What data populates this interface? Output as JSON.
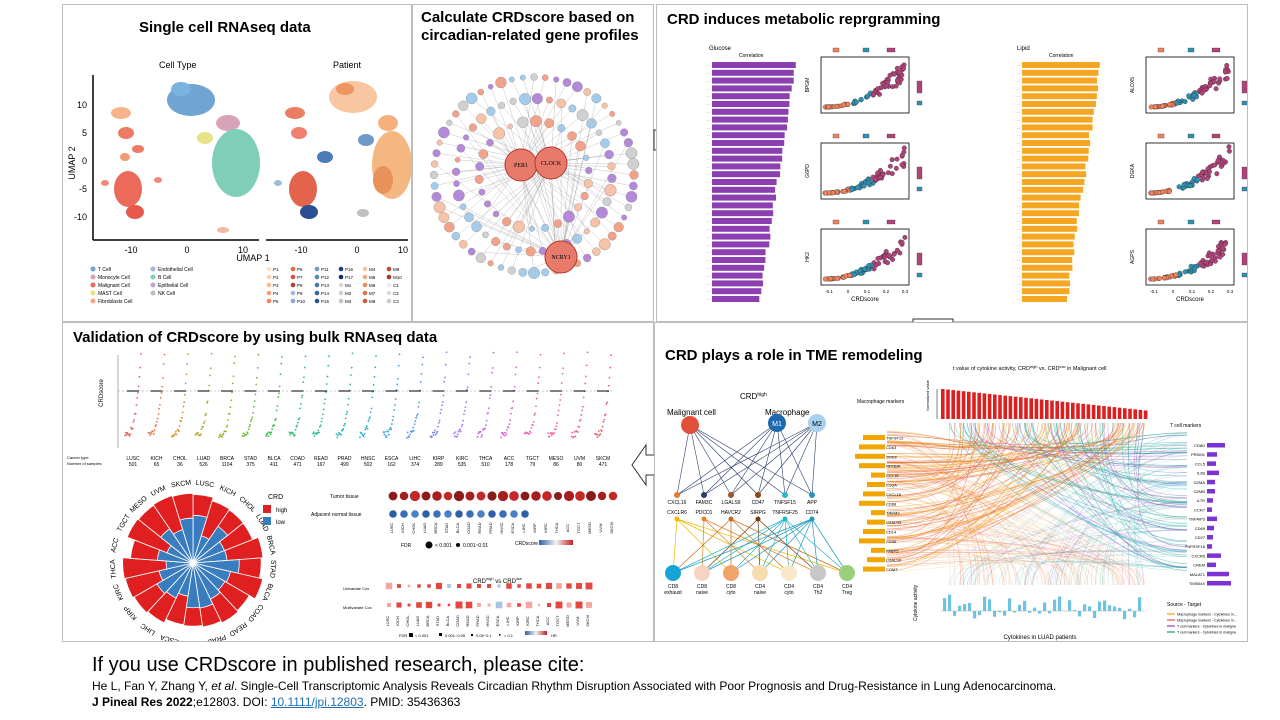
{
  "panels": {
    "scrna": {
      "title": "Single cell RNAseq data",
      "umap_left_title": "Cell Type",
      "umap_right_title": "Patient",
      "axis_y": "UMAP 2",
      "axis_x": "UMAP 1",
      "yticks": [
        "10",
        "5",
        "0",
        "-5",
        "-10"
      ],
      "xticks": [
        "-10",
        "0",
        "10",
        "-10",
        "0",
        "10"
      ],
      "celltype_legend": [
        "T Cell",
        "Monocyte Cell",
        "Malignant Cell",
        "MAST Cell",
        "Fibroblasts Cell",
        "Endothelial Cell",
        "B Cell",
        "Epithelial Cell",
        "NK Cell"
      ],
      "patient_legend": [
        "P1",
        "P2",
        "P3",
        "P4",
        "P5",
        "P6",
        "P7",
        "P8",
        "P9",
        "P10",
        "P11",
        "P12",
        "P13",
        "P14",
        "P15",
        "P16",
        "P17",
        "M1",
        "M2",
        "M3",
        "M4",
        "M5",
        "M6",
        "M7",
        "M8",
        "M9",
        "M10",
        "C1",
        "C2",
        "C3"
      ]
    },
    "network": {
      "title_line1": "Calculate CRDscore based on",
      "title_line2": "circadian-related gene profiles",
      "hub_labels": [
        "PER1",
        "CLOCK",
        "NCRY1"
      ]
    },
    "metabolic": {
      "title": "CRD induces metabolic reprgramming",
      "left_header": "Glucose",
      "right_header": "Lipid",
      "corr_label": "Correlation",
      "left_scatter_ylabels": [
        "BPGM",
        "G6PD",
        "HK2"
      ],
      "right_scatter_ylabels": [
        "ALOX5",
        "DGKA",
        "AGPS"
      ],
      "xlabel": "CRDscore",
      "xticks": [
        "-0.1",
        "0",
        "0.1",
        "0.2",
        "0.3"
      ]
    },
    "bulk": {
      "title": "Validation of CRDscore by using bulk RNAseq data",
      "ylabel": "CRDscore",
      "cancers": [
        "LUSC",
        "KICH",
        "CHOL",
        "LUAD",
        "BRCA",
        "STAD",
        "BLCA",
        "COAD",
        "READ",
        "PRAD",
        "HNSC",
        "ESCA",
        "LIHC",
        "KIRP",
        "KIRC",
        "THCA",
        "ACC",
        "TGCT",
        "MESO",
        "UVM",
        "SKCM"
      ],
      "samples": [
        "501",
        "65",
        "36",
        "526",
        "1104",
        "375",
        "411",
        "471",
        "167",
        "499",
        "502",
        "162",
        "374",
        "289",
        "535",
        "510",
        "178",
        "79",
        "86",
        "80",
        "471"
      ],
      "row_labels": [
        "Cancer type",
        "Number of samples"
      ],
      "crd_legend_title": "CRD",
      "crd_legend_items": [
        "high",
        "low"
      ],
      "tissue_labels": [
        "Tumor tissue",
        "Adjacent normal tissue"
      ],
      "fdr_label": "FDR",
      "fdr_items": [
        "< 0.001",
        "0.001~0.01"
      ],
      "crdscore_label": "CRDscore",
      "cox_title": "CRD",
      "cox_title_high": "high",
      "cox_title_vs": " vs CRD",
      "cox_title_low": "low",
      "cox_rows": [
        "Univariate Cox",
        "Multivariate Cox"
      ],
      "cox_fdr": [
        "< 0.001",
        "0.001~0.05",
        "0.05~0.1",
        "> 0.1"
      ],
      "hr_label": "HR"
    },
    "tme": {
      "title": "CRD plays a role in TME remodeling",
      "crd_label": "CRD",
      "crd_sup": "high",
      "malignant": "Malignant cell",
      "macrophage": "Macrophage",
      "m1": "M1",
      "m2": "M2",
      "genes_top": [
        "CXCL16",
        "FAM3C",
        "LGALS9",
        "CD47",
        "TNFSF15",
        "APP"
      ],
      "genes_bottom": [
        "CXCLR6",
        "PDCD1",
        "HAVCR2",
        "SIRPG",
        "TNFRSF25",
        "CD74"
      ],
      "tcells": [
        "CD8 exhaust",
        "CD8 naive",
        "CD8 cyto",
        "CD4 naive",
        "CD4 cyto",
        "CD4 Th2",
        "CD4 Treg"
      ],
      "cyto_title": "t value of cytokine activity, CRD",
      "cyto_title_high": "high",
      "cyto_title_vs": " vs. CRD",
      "cyto_title_low": "low",
      "cyto_title_tail": " in Malignant  cell",
      "macro_markers": "Macrophage markers",
      "tcell_markers": "T cell markers",
      "bottom_label": "Cytokines in LUAD patients",
      "cyto_activity": "Cytokine activity",
      "source_target": "Source - Target",
      "source_items": [
        "Macrophage markers - Cytokines in...",
        "Macrophage markers - Cytokines in...",
        "T cell markers - Cytokines in maligna",
        "T cell markers - Cytokines in maligna"
      ],
      "macro_genes": [
        "TNFSF13",
        "CD63",
        "SOD2",
        "NFKBIA",
        "CCL18",
        "C1QA",
        "CXCL16",
        "CD68",
        "TREM2",
        "LGALS3",
        "CD14",
        "CD36",
        "FABP5",
        "LGALS9",
        "COMT"
      ],
      "tcell_genes": [
        "CD8D",
        "PRDM1",
        "CCL5",
        "IL2B",
        "GZMA",
        "GZMB",
        "IL7R",
        "CCR7",
        "TNFAIP3",
        "CD69",
        "CD27",
        "TNFRSF18",
        "CXCR6",
        "CREM",
        "MALAT1",
        "TMSB4X"
      ]
    }
  },
  "citation": {
    "heading": "If you use CRDscore in published  research, please cite:",
    "authors_pre": "He L, Fan Y, Zhang Y, ",
    "et_al": "et al",
    "title": ". Single-Cell Transcriptomic Analysis Reveals Circadian Rhythm Disruption Associated with Poor Prognosis and Drug-Resistance  in Lung Adenocarcinoma.",
    "journal": "J Pineal Res 2022",
    "volume": ";e12803.",
    "doi_label": "DOI: ",
    "doi": "10.1111/jpi.12803",
    "pmid": ". PMID: 35436363"
  },
  "colors": {
    "bar_purple": "#8c3fb0",
    "bar_orange": "#f5a623",
    "crd_high": "#e02020",
    "crd_low": "#3a7dbf"
  }
}
